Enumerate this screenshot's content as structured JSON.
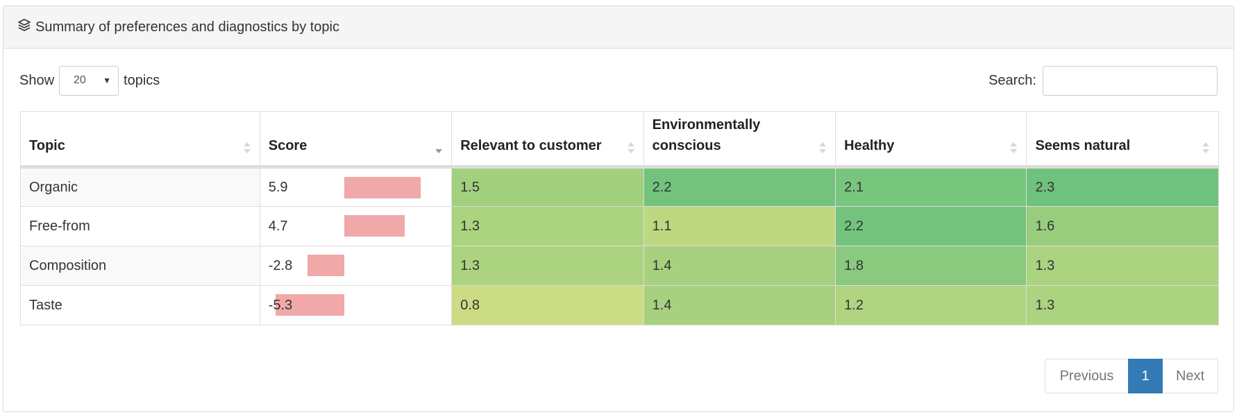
{
  "panel": {
    "title": "Summary of preferences and diagnostics by topic",
    "icon": "layers-icon"
  },
  "controls": {
    "show_label": "Show",
    "length_value": "20",
    "topics_label": "topics",
    "search_label": "Search:",
    "search_value": ""
  },
  "table": {
    "columns": [
      "Topic",
      "Score",
      "Relevant to customer",
      "Environmentally conscious",
      "Healthy",
      "Seems natural"
    ],
    "sort_column": "Score",
    "sort_direction": "descending",
    "score_scale": [
      -5.3,
      5.9
    ],
    "rows": [
      {
        "topic": "Organic",
        "score": "5.9",
        "score_value": 5.9,
        "cells": [
          {
            "value": "1.5",
            "color": "#a2d07f"
          },
          {
            "value": "2.2",
            "color": "#73c37d"
          },
          {
            "value": "2.1",
            "color": "#78c57d"
          },
          {
            "value": "2.3",
            "color": "#6fc27d"
          }
        ]
      },
      {
        "topic": "Free-from",
        "score": "4.7",
        "score_value": 4.7,
        "cells": [
          {
            "value": "1.3",
            "color": "#acd380"
          },
          {
            "value": "1.1",
            "color": "#bed882"
          },
          {
            "value": "2.2",
            "color": "#73c37d"
          },
          {
            "value": "1.6",
            "color": "#98cd7e"
          }
        ]
      },
      {
        "topic": "Composition",
        "score": "-2.8",
        "score_value": -2.8,
        "cells": [
          {
            "value": "1.3",
            "color": "#acd380"
          },
          {
            "value": "1.4",
            "color": "#a7d17f"
          },
          {
            "value": "1.8",
            "color": "#8ac97e"
          },
          {
            "value": "1.3",
            "color": "#acd380"
          }
        ]
      },
      {
        "topic": "Taste",
        "score": "-5.3",
        "score_value": -5.3,
        "cells": [
          {
            "value": "0.8",
            "color": "#cbdc83"
          },
          {
            "value": "1.4",
            "color": "#a7d17f"
          },
          {
            "value": "1.2",
            "color": "#b1d481"
          },
          {
            "value": "1.3",
            "color": "#acd380"
          }
        ]
      }
    ]
  },
  "pagination": {
    "previous_label": "Previous",
    "current_page": "1",
    "next_label": "Next"
  },
  "colors": {
    "score_bar": "#f0a8a8",
    "page_active": "#337ab7"
  }
}
